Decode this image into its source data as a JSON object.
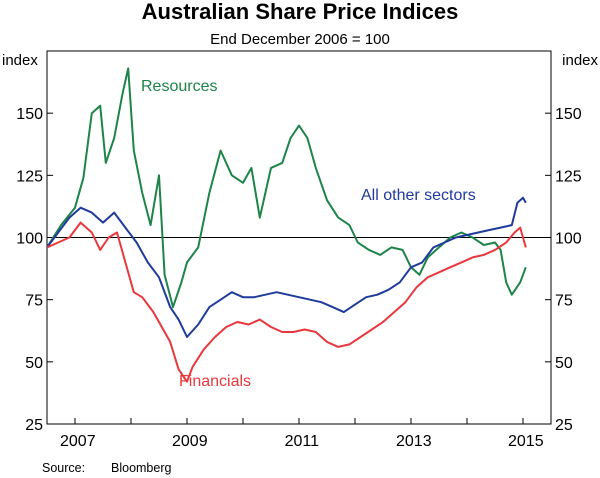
{
  "chart_data": {
    "type": "line",
    "title": "Australian Share Price Indices",
    "subtitle": "End December 2006 = 100",
    "y_unit_left": "index",
    "y_unit_right": "index",
    "ylim": [
      25,
      175
    ],
    "y_ticks": [
      25,
      50,
      75,
      100,
      125,
      150
    ],
    "xlim": [
      2006.5,
      2015.5
    ],
    "x_ticks": [
      2007,
      2009,
      2011,
      2013,
      2015
    ],
    "x_tick_labels": [
      "2007",
      "2009",
      "2011",
      "2013",
      "2015"
    ],
    "reference_line": 100,
    "grid": false,
    "source_label": "Source:",
    "source_value": "Bloomberg",
    "series": [
      {
        "name": "Resources",
        "color": "#1e8449",
        "x": [
          2006.5,
          2006.75,
          2007.0,
          2007.15,
          2007.3,
          2007.45,
          2007.55,
          2007.7,
          2007.85,
          2007.95,
          2008.05,
          2008.2,
          2008.35,
          2008.5,
          2008.6,
          2008.75,
          2008.9,
          2009.0,
          2009.2,
          2009.4,
          2009.6,
          2009.8,
          2010.0,
          2010.15,
          2010.3,
          2010.5,
          2010.7,
          2010.85,
          2011.0,
          2011.15,
          2011.3,
          2011.5,
          2011.7,
          2011.9,
          2012.05,
          2012.25,
          2012.45,
          2012.65,
          2012.85,
          2013.0,
          2013.15,
          2013.3,
          2013.5,
          2013.7,
          2013.9,
          2014.1,
          2014.3,
          2014.5,
          2014.6,
          2014.7,
          2014.8,
          2014.95,
          2015.05
        ],
        "values": [
          96,
          105,
          112,
          124,
          150,
          153,
          130,
          140,
          158,
          168,
          135,
          118,
          105,
          125,
          85,
          72,
          82,
          90,
          96,
          118,
          135,
          125,
          122,
          128,
          108,
          128,
          130,
          140,
          145,
          140,
          128,
          115,
          108,
          105,
          98,
          95,
          93,
          96,
          95,
          88,
          85,
          92,
          96,
          100,
          102,
          100,
          97,
          98,
          95,
          82,
          77,
          82,
          88
        ]
      },
      {
        "name": "All other sectors",
        "color": "#1f3b9b",
        "x": [
          2006.5,
          2006.7,
          2006.9,
          2007.1,
          2007.3,
          2007.5,
          2007.7,
          2007.9,
          2008.1,
          2008.3,
          2008.5,
          2008.7,
          2008.85,
          2009.0,
          2009.2,
          2009.4,
          2009.6,
          2009.8,
          2010.0,
          2010.2,
          2010.4,
          2010.6,
          2010.8,
          2011.0,
          2011.2,
          2011.4,
          2011.6,
          2011.8,
          2012.0,
          2012.2,
          2012.4,
          2012.6,
          2012.8,
          2013.0,
          2013.2,
          2013.4,
          2013.6,
          2013.8,
          2014.0,
          2014.2,
          2014.4,
          2014.6,
          2014.8,
          2014.9,
          2015.0,
          2015.05
        ],
        "values": [
          96,
          102,
          108,
          112,
          110,
          106,
          110,
          104,
          98,
          90,
          84,
          72,
          67,
          60,
          65,
          72,
          75,
          78,
          76,
          76,
          77,
          78,
          77,
          76,
          75,
          74,
          72,
          70,
          73,
          76,
          77,
          79,
          82,
          88,
          90,
          96,
          98,
          100,
          101,
          102,
          103,
          104,
          105,
          114,
          116,
          114
        ]
      },
      {
        "name": "Financials",
        "color": "#e8383d",
        "x": [
          2006.5,
          2006.7,
          2006.9,
          2007.1,
          2007.3,
          2007.45,
          2007.6,
          2007.75,
          2007.9,
          2008.05,
          2008.2,
          2008.4,
          2008.55,
          2008.7,
          2008.85,
          2009.0,
          2009.1,
          2009.3,
          2009.5,
          2009.7,
          2009.9,
          2010.1,
          2010.3,
          2010.5,
          2010.7,
          2010.9,
          2011.1,
          2011.3,
          2011.5,
          2011.7,
          2011.9,
          2012.1,
          2012.3,
          2012.5,
          2012.7,
          2012.9,
          2013.1,
          2013.3,
          2013.5,
          2013.7,
          2013.9,
          2014.1,
          2014.3,
          2014.5,
          2014.7,
          2014.85,
          2014.95,
          2015.05
        ],
        "values": [
          96,
          98,
          100,
          106,
          102,
          95,
          100,
          102,
          90,
          78,
          76,
          70,
          64,
          58,
          47,
          42,
          48,
          55,
          60,
          64,
          66,
          65,
          67,
          64,
          62,
          62,
          63,
          62,
          58,
          56,
          57,
          60,
          63,
          66,
          70,
          74,
          80,
          84,
          86,
          88,
          90,
          92,
          93,
          95,
          98,
          102,
          104,
          96
        ]
      }
    ],
    "series_labels": [
      "Resources",
      "All other sectors",
      "Financials"
    ]
  }
}
